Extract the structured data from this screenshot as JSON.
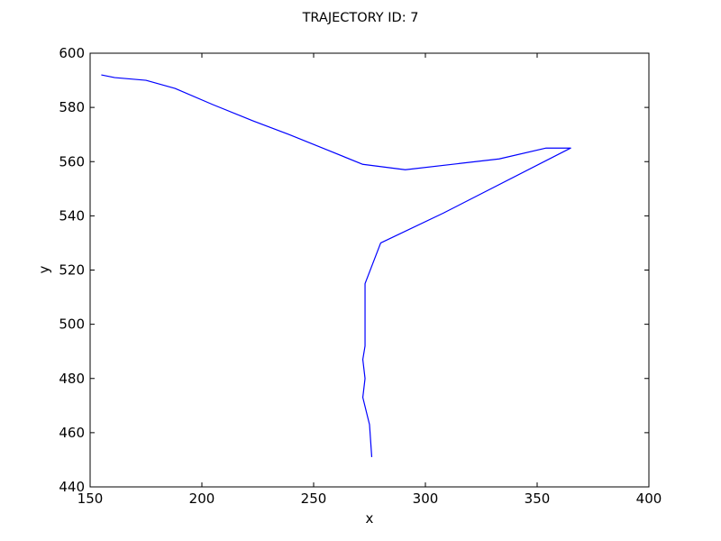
{
  "chart_data": {
    "type": "line",
    "title": "TRAJECTORY ID: 7",
    "xlabel": "x",
    "ylabel": "y",
    "xlim": [
      150,
      400
    ],
    "ylim": [
      440,
      600
    ],
    "xticks": [
      150,
      200,
      250,
      300,
      350,
      400
    ],
    "yticks": [
      440,
      460,
      480,
      500,
      520,
      540,
      560,
      580,
      600
    ],
    "grid": false,
    "colors": {
      "line": "#0000ff",
      "axes": "#000000",
      "background": "#ffffff"
    },
    "series": [
      {
        "x": [
          155,
          161,
          175,
          188,
          205,
          223,
          239,
          257,
          272,
          291,
          333,
          354,
          365,
          308,
          280,
          273,
          273,
          273,
          272,
          273,
          272,
          275,
          276
        ],
        "y": [
          592,
          591,
          590,
          587,
          581,
          575,
          570,
          564,
          559,
          557,
          561,
          565,
          565,
          541,
          530,
          515,
          500,
          492,
          487,
          480,
          473,
          463,
          451
        ]
      }
    ]
  }
}
